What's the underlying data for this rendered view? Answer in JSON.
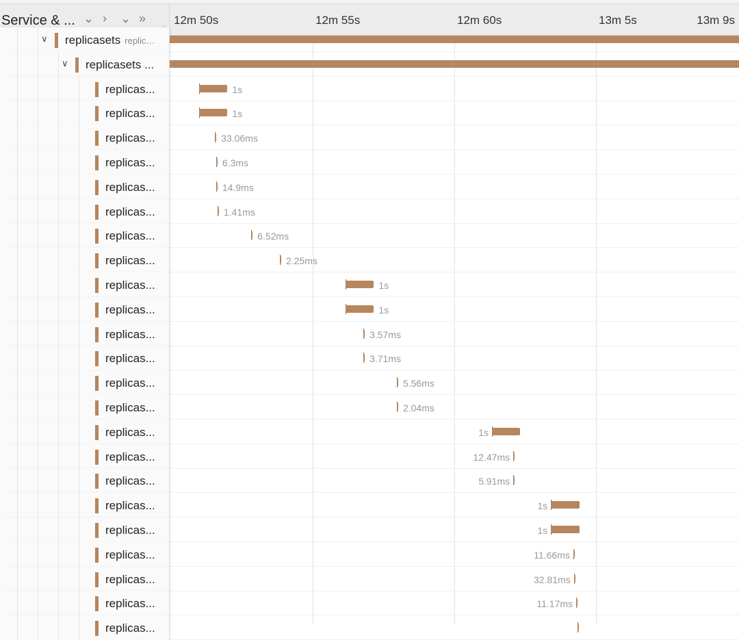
{
  "header": {
    "title": "Service & ...",
    "buttons": [
      "collapse-one",
      "expand-one",
      "collapse-all",
      "expand-all"
    ]
  },
  "ticks": [
    {
      "label": "12m 50s",
      "time_s": 770
    },
    {
      "label": "12m 55s",
      "time_s": 775
    },
    {
      "label": "12m 60s",
      "time_s": 780
    },
    {
      "label": "13m 5s",
      "time_s": 785
    },
    {
      "label": "13m 9s",
      "time_s": 789
    }
  ],
  "accent": "#b5865f",
  "parents": [
    {
      "label": "replicasets",
      "sub": "replic…"
    },
    {
      "label": "replicasets ..."
    }
  ],
  "spans": [
    {
      "label": "replicas...",
      "start_s": 770.99,
      "duration": "1s",
      "dur_s": 1,
      "cap": "right"
    },
    {
      "label": "replicas...",
      "start_s": 770.99,
      "duration": "1s",
      "dur_s": 1,
      "cap": "right"
    },
    {
      "label": "replicas...",
      "start_s": 771.55,
      "duration": "33.06ms",
      "dur_s": 0.03306,
      "cap": "right"
    },
    {
      "label": "replicas...",
      "start_s": 771.59,
      "duration": "6.3ms",
      "dur_s": 0.0063,
      "cap": "right"
    },
    {
      "label": "replicas...",
      "start_s": 771.59,
      "duration": "14.9ms",
      "dur_s": 0.0149,
      "cap": "right"
    },
    {
      "label": "replicas...",
      "start_s": 771.64,
      "duration": "1.41ms",
      "dur_s": 0.00141,
      "cap": "right"
    },
    {
      "label": "replicas...",
      "start_s": 772.83,
      "duration": "6.52ms",
      "dur_s": 0.00652,
      "cap": "right"
    },
    {
      "label": "replicas...",
      "start_s": 773.84,
      "duration": "2.25ms",
      "dur_s": 0.00225,
      "cap": "right"
    },
    {
      "label": "replicas...",
      "start_s": 776.16,
      "duration": "1s",
      "dur_s": 1,
      "cap": "right"
    },
    {
      "label": "replicas...",
      "start_s": 776.16,
      "duration": "1s",
      "dur_s": 1,
      "cap": "right"
    },
    {
      "label": "replicas...",
      "start_s": 776.79,
      "duration": "3.57ms",
      "dur_s": 0.00357,
      "cap": "right"
    },
    {
      "label": "replicas...",
      "start_s": 776.79,
      "duration": "3.71ms",
      "dur_s": 0.00371,
      "cap": "right"
    },
    {
      "label": "replicas...",
      "start_s": 777.97,
      "duration": "5.56ms",
      "dur_s": 0.00556,
      "cap": "right"
    },
    {
      "label": "replicas...",
      "start_s": 777.97,
      "duration": "2.04ms",
      "dur_s": 0.00204,
      "cap": "right"
    },
    {
      "label": "replicas...",
      "start_s": 781.33,
      "duration": "1s",
      "dur_s": 1,
      "cap": "left"
    },
    {
      "label": "replicas...",
      "start_s": 782.08,
      "duration": "12.47ms",
      "dur_s": 0.01247,
      "cap": "left"
    },
    {
      "label": "replicas...",
      "start_s": 782.08,
      "duration": "5.91ms",
      "dur_s": 0.00591,
      "cap": "left"
    },
    {
      "label": "replicas...",
      "start_s": 783.41,
      "duration": "1s",
      "dur_s": 1,
      "cap": "left"
    },
    {
      "label": "replicas...",
      "start_s": 783.41,
      "duration": "1s",
      "dur_s": 1,
      "cap": "left"
    },
    {
      "label": "replicas...",
      "start_s": 784.2,
      "duration": "11.66ms",
      "dur_s": 0.01166,
      "cap": "left"
    },
    {
      "label": "replicas...",
      "start_s": 784.22,
      "duration": "32.81ms",
      "dur_s": 0.03281,
      "cap": "left"
    },
    {
      "label": "replicas...",
      "start_s": 784.3,
      "duration": "11.17ms",
      "dur_s": 0.01117,
      "cap": "left"
    },
    {
      "label": "replicas...",
      "start_s": 784.35,
      "duration": "",
      "dur_s": 0.005,
      "cap": "left"
    }
  ]
}
